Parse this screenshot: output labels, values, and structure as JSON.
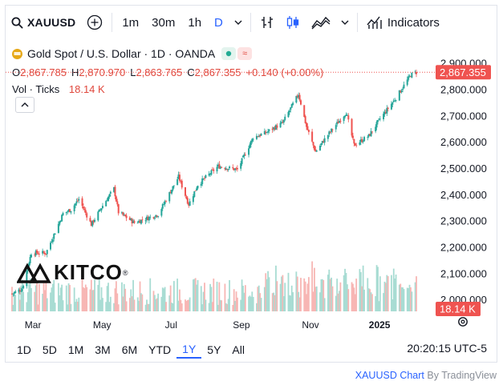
{
  "toolbar": {
    "symbol": "XAUUSD",
    "timeframes": [
      "1m",
      "30m",
      "1h",
      "D"
    ],
    "active_timeframe": "D",
    "indicators_label": "Indicators"
  },
  "legend": {
    "title": "Gold Spot / U.S. Dollar · 1D · OANDA",
    "o_key": "O",
    "o_val": "2,867.785",
    "h_key": "H",
    "h_val": "2,870.970",
    "l_key": "L",
    "l_val": "2,863.765",
    "c_key": "C",
    "c_val": "2,867.355",
    "change": "+0.140 (+0.00%)",
    "vol_label": "Vol · Ticks",
    "vol_value": "18.14 K"
  },
  "colors": {
    "up": "#26a69a",
    "down": "#ef5350",
    "accent": "#2962ff",
    "last_price_bg": "#ef5350"
  },
  "watermark": {
    "brand": "KITCO",
    "reg": "®"
  },
  "chart_data": {
    "type": "candlestick",
    "price_axis_ticks": [
      "2,900.000",
      "2,800.000",
      "2,700.000",
      "2,600.000",
      "2,500.000",
      "2,400.000",
      "2,300.000",
      "2,200.000",
      "2,100.000",
      "2,000.000"
    ],
    "ylim": [
      1958,
      2920
    ],
    "last_price_label": "2,867.355",
    "last_price": 2867.355,
    "volume_label": "18.14 K",
    "time_axis_labels": [
      "Mar",
      "May",
      "Jul",
      "Sep",
      "Nov",
      "2025"
    ],
    "anchor_closes": [
      {
        "date": "2024-02-20",
        "close": 2025
      },
      {
        "date": "2024-02-29",
        "close": 2044
      },
      {
        "date": "2024-03-08",
        "close": 2180
      },
      {
        "date": "2024-03-21",
        "close": 2180
      },
      {
        "date": "2024-04-05",
        "close": 2330
      },
      {
        "date": "2024-04-12",
        "close": 2345
      },
      {
        "date": "2024-04-19",
        "close": 2385
      },
      {
        "date": "2024-04-30",
        "close": 2288
      },
      {
        "date": "2024-05-10",
        "close": 2360
      },
      {
        "date": "2024-05-20",
        "close": 2425
      },
      {
        "date": "2024-05-24",
        "close": 2335
      },
      {
        "date": "2024-06-07",
        "close": 2295
      },
      {
        "date": "2024-06-28",
        "close": 2327
      },
      {
        "date": "2024-07-16",
        "close": 2470
      },
      {
        "date": "2024-07-25",
        "close": 2365
      },
      {
        "date": "2024-08-02",
        "close": 2440
      },
      {
        "date": "2024-08-20",
        "close": 2510
      },
      {
        "date": "2024-09-06",
        "close": 2497
      },
      {
        "date": "2024-09-20",
        "close": 2620
      },
      {
        "date": "2024-09-30",
        "close": 2635
      },
      {
        "date": "2024-10-16",
        "close": 2675
      },
      {
        "date": "2024-10-30",
        "close": 2785
      },
      {
        "date": "2024-11-06",
        "close": 2660
      },
      {
        "date": "2024-11-14",
        "close": 2565
      },
      {
        "date": "2024-11-25",
        "close": 2630
      },
      {
        "date": "2024-12-11",
        "close": 2715
      },
      {
        "date": "2024-12-18",
        "close": 2590
      },
      {
        "date": "2024-12-31",
        "close": 2625
      },
      {
        "date": "2025-01-10",
        "close": 2690
      },
      {
        "date": "2025-01-24",
        "close": 2770
      },
      {
        "date": "2025-02-06",
        "close": 2857
      },
      {
        "date": "2025-02-11",
        "close": 2867
      }
    ]
  },
  "bottom_bar": {
    "ranges": [
      "1D",
      "5D",
      "1M",
      "3M",
      "6M",
      "YTD",
      "1Y",
      "5Y",
      "All"
    ],
    "active_range": "1Y",
    "clock": "20:20:15 UTC-5"
  },
  "credit": {
    "symbol_chart": "XAUUSD Chart",
    "by": "By TradingView"
  }
}
